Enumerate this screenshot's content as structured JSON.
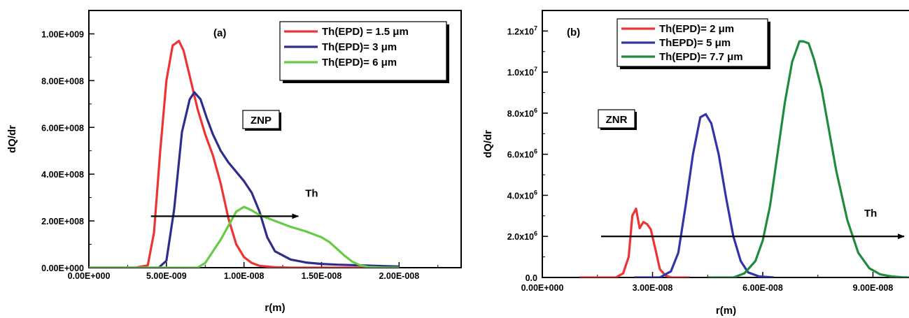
{
  "chart_data": [
    {
      "type": "line",
      "panel_label": "(a)",
      "xlabel": "r(m)",
      "ylabel": "dQ/dr",
      "xlim": [
        0,
        2.4e-08
      ],
      "ylim": [
        0,
        1100000000.0
      ],
      "x_ticks": [
        {
          "value": 0,
          "label": "0.00E+000"
        },
        {
          "value": 5e-09,
          "label": "5.00E-009"
        },
        {
          "value": 1e-08,
          "label": "1.00E-008"
        },
        {
          "value": 1.5e-08,
          "label": "1.50E-008"
        },
        {
          "value": 2e-08,
          "label": "2.00E-008"
        }
      ],
      "y_ticks": [
        {
          "value": 0,
          "label": "0.00E+000"
        },
        {
          "value": 200000000.0,
          "label": "2.00E+008"
        },
        {
          "value": 400000000.0,
          "label": "4.00E+008"
        },
        {
          "value": 600000000.0,
          "label": "6.00E+008"
        },
        {
          "value": 800000000.0,
          "label": "8.00E+008"
        },
        {
          "value": 1000000000.0,
          "label": "1.00E+009"
        }
      ],
      "tag": "ZNP",
      "arrow": {
        "label": "Th",
        "from": [
          4e-09,
          220000000.0
        ],
        "to": [
          1.35e-08,
          220000000.0
        ]
      },
      "legend_position": "top-right",
      "series": [
        {
          "name": "Th(EPD) = 1.5 μm",
          "color": "#ee3333",
          "x": [
            0,
            3e-09,
            3.8e-09,
            4.2e-09,
            4.6e-09,
            5e-09,
            5.4e-09,
            5.8e-09,
            6.1e-09,
            6.5e-09,
            7e-09,
            7.5e-09,
            8e-09,
            8.5e-09,
            9e-09,
            9.5e-09,
            1e-08,
            1.05e-08,
            1.1e-08,
            1.2e-08,
            1.3e-08,
            2e-08
          ],
          "y": [
            0,
            0,
            10000000.0,
            150000000.0,
            500000000.0,
            800000000.0,
            950000000.0,
            970000000.0,
            930000000.0,
            820000000.0,
            680000000.0,
            570000000.0,
            480000000.0,
            360000000.0,
            210000000.0,
            100000000.0,
            45000000.0,
            20000000.0,
            8000000.0,
            2000000.0,
            0,
            0
          ]
        },
        {
          "name": "Th(EPD)=  3 μm",
          "color": "#2e2e8a",
          "x": [
            0,
            4.5e-09,
            5e-09,
            5.5e-09,
            6e-09,
            6.5e-09,
            6.8e-09,
            7.2e-09,
            7.6e-09,
            8e-09,
            8.5e-09,
            9e-09,
            9.5e-09,
            1e-08,
            1.05e-08,
            1.1e-08,
            1.15e-08,
            1.2e-08,
            1.3e-08,
            1.4e-08,
            1.5e-08,
            1.6e-08,
            1.7e-08,
            1.8e-08,
            1.9e-08,
            2e-08
          ],
          "y": [
            0,
            0,
            30000000.0,
            250000000.0,
            580000000.0,
            720000000.0,
            750000000.0,
            720000000.0,
            640000000.0,
            570000000.0,
            500000000.0,
            450000000.0,
            410000000.0,
            370000000.0,
            320000000.0,
            240000000.0,
            130000000.0,
            70000000.0,
            35000000.0,
            22000000.0,
            16000000.0,
            13000000.0,
            11000000.0,
            9000000.0,
            7000000.0,
            5000000.0
          ]
        },
        {
          "name": "Th(EPD)=  6 μm",
          "color": "#66cc44",
          "x": [
            0,
            7e-09,
            7.5e-09,
            8e-09,
            8.5e-09,
            9e-09,
            9.5e-09,
            1e-08,
            1.05e-08,
            1.1e-08,
            1.2e-08,
            1.3e-08,
            1.4e-08,
            1.5e-08,
            1.55e-08,
            1.6e-08,
            1.65e-08,
            1.7e-08,
            1.75e-08,
            1.8e-08,
            1.9e-08,
            2e-08
          ],
          "y": [
            0,
            0,
            20000000.0,
            70000000.0,
            120000000.0,
            180000000.0,
            240000000.0,
            260000000.0,
            245000000.0,
            225000000.0,
            200000000.0,
            175000000.0,
            155000000.0,
            130000000.0,
            110000000.0,
            80000000.0,
            50000000.0,
            25000000.0,
            10000000.0,
            3000000.0,
            0,
            0
          ]
        }
      ]
    },
    {
      "type": "line",
      "panel_label": "(b)",
      "xlabel": "r(m)",
      "ylabel": "dQ/dr",
      "xlim": [
        0,
        1e-07
      ],
      "ylim": [
        0,
        13000000.0
      ],
      "x_ticks": [
        {
          "value": 0,
          "label": "0.00E+000"
        },
        {
          "value": 3e-08,
          "label": "3.00E-008"
        },
        {
          "value": 6e-08,
          "label": "6.00E-008"
        },
        {
          "value": 9e-08,
          "label": "9.00E-008"
        }
      ],
      "y_ticks": [
        {
          "value": 0,
          "base": "0.0",
          "exp": ""
        },
        {
          "value": 2000000.0,
          "base": "2.0x10",
          "exp": "6"
        },
        {
          "value": 4000000.0,
          "base": "4.0x10",
          "exp": "6"
        },
        {
          "value": 6000000.0,
          "base": "6.0x10",
          "exp": "6"
        },
        {
          "value": 8000000.0,
          "base": "8.0x10",
          "exp": "6"
        },
        {
          "value": 10000000.0,
          "base": "1.0x10",
          "exp": "7"
        },
        {
          "value": 12000000.0,
          "base": "1.2x10",
          "exp": "7"
        }
      ],
      "tag": "ZNR",
      "arrow": {
        "label": "Th",
        "from": [
          1.6e-08,
          2000000.0
        ],
        "to": [
          1e-07,
          2000000.0
        ]
      },
      "legend_position": "top-left",
      "series": [
        {
          "name": "Th(EPD)= 2 μm",
          "color": "#ee3333",
          "x": [
            1e-08,
            2e-08,
            2.2e-08,
            2.35e-08,
            2.45e-08,
            2.55e-08,
            2.65e-08,
            2.75e-08,
            2.85e-08,
            2.95e-08,
            3.1e-08,
            3.2e-08,
            3.35e-08,
            3.5e-08,
            4e-08
          ],
          "y": [
            0,
            0,
            200000.0,
            1000000.0,
            3000000.0,
            3350000.0,
            2400000.0,
            2700000.0,
            2600000.0,
            2350000.0,
            1200000.0,
            400000.0,
            100000.0,
            0,
            0
          ]
        },
        {
          "name": "ThEPD)= 5 μm",
          "color": "#3333aa",
          "x": [
            2.5e-08,
            3.2e-08,
            3.5e-08,
            3.7e-08,
            3.9e-08,
            4.1e-08,
            4.3e-08,
            4.45e-08,
            4.6e-08,
            4.8e-08,
            5e-08,
            5.2e-08,
            5.4e-08,
            5.6e-08,
            5.9e-08,
            6.3e-08
          ],
          "y": [
            0,
            0,
            300000.0,
            1200000.0,
            3500000.0,
            6000000.0,
            7800000.0,
            7950000.0,
            7500000.0,
            6000000.0,
            3900000.0,
            2000000.0,
            800000.0,
            250000.0,
            50000.0,
            0
          ]
        },
        {
          "name": "Th(EPD)= 7.7 μm",
          "color": "#1e8c3c",
          "x": [
            4.5e-08,
            5.2e-08,
            5.5e-08,
            5.8e-08,
            6e-08,
            6.2e-08,
            6.4e-08,
            6.6e-08,
            6.8e-08,
            7e-08,
            7.1e-08,
            7.25e-08,
            7.4e-08,
            7.6e-08,
            7.8e-08,
            8e-08,
            8.3e-08,
            8.6e-08,
            8.9e-08,
            9.2e-08,
            9.5e-08,
            9.8e-08,
            1e-07
          ],
          "y": [
            0,
            0,
            200000.0,
            800000.0,
            1800000.0,
            3500000.0,
            6000000.0,
            8500000.0,
            10500000.0,
            11500000.0,
            11500000.0,
            11400000.0,
            10600000.0,
            9200000.0,
            7200000.0,
            5200000.0,
            2800000.0,
            1200000.0,
            450000.0,
            150000.0,
            50000.0,
            10000.0,
            0
          ]
        }
      ]
    }
  ]
}
